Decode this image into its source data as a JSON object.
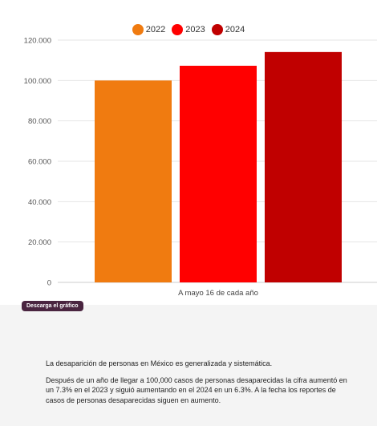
{
  "legend": [
    {
      "label": "2022",
      "color": "#f07b10"
    },
    {
      "label": "2023",
      "color": "#ff0000"
    },
    {
      "label": "2024",
      "color": "#c00000"
    }
  ],
  "download_button": "Descarga el gráfico",
  "paragraphs": [
    "La desaparición de personas en México es generalizada y sistemática.",
    "Después de un año de llegar a 100,000 casos de personas desaparecidas la cifra aumentó en un 7.3% en el 2023 y siguió aumentando en el 2024 en un 6.3%. A la fecha los reportes de casos de personas desaparecidas siguen en aumento."
  ],
  "chart_data": {
    "type": "bar",
    "categories": [
      "A mayo 16 de cada año"
    ],
    "xlabel": "A mayo 16 de cada año",
    "ylabel": "",
    "ylim": [
      0,
      120000
    ],
    "yticks": [
      0,
      20000,
      40000,
      60000,
      80000,
      100000,
      120000
    ],
    "ytick_labels": [
      "0",
      "20.000",
      "40.000",
      "60.000",
      "80.000",
      "100.000",
      "120.000"
    ],
    "grid": true,
    "legend_position": "top",
    "series": [
      {
        "name": "2022",
        "values": [
          100000
        ],
        "color": "#f07b10"
      },
      {
        "name": "2023",
        "values": [
          107300
        ],
        "color": "#ff0000"
      },
      {
        "name": "2024",
        "values": [
          114100
        ],
        "color": "#c00000"
      }
    ]
  }
}
